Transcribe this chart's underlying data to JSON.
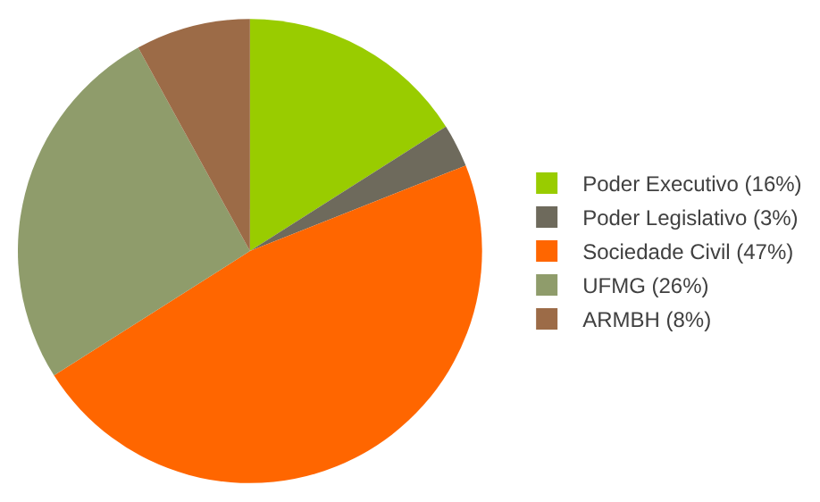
{
  "chart_data": {
    "type": "pie",
    "categories": [
      "Poder Executivo (16%)",
      "Poder Legislativo (3%)",
      "Sociedade Civil (47%)",
      "UFMG (26%)",
      "ARMBH (8%)"
    ],
    "values": [
      16,
      3,
      47,
      26,
      8
    ],
    "colors": [
      "#99cc00",
      "#6e6a5c",
      "#ff6600",
      "#8f9c6b",
      "#9c6b47"
    ],
    "legend": "right"
  }
}
